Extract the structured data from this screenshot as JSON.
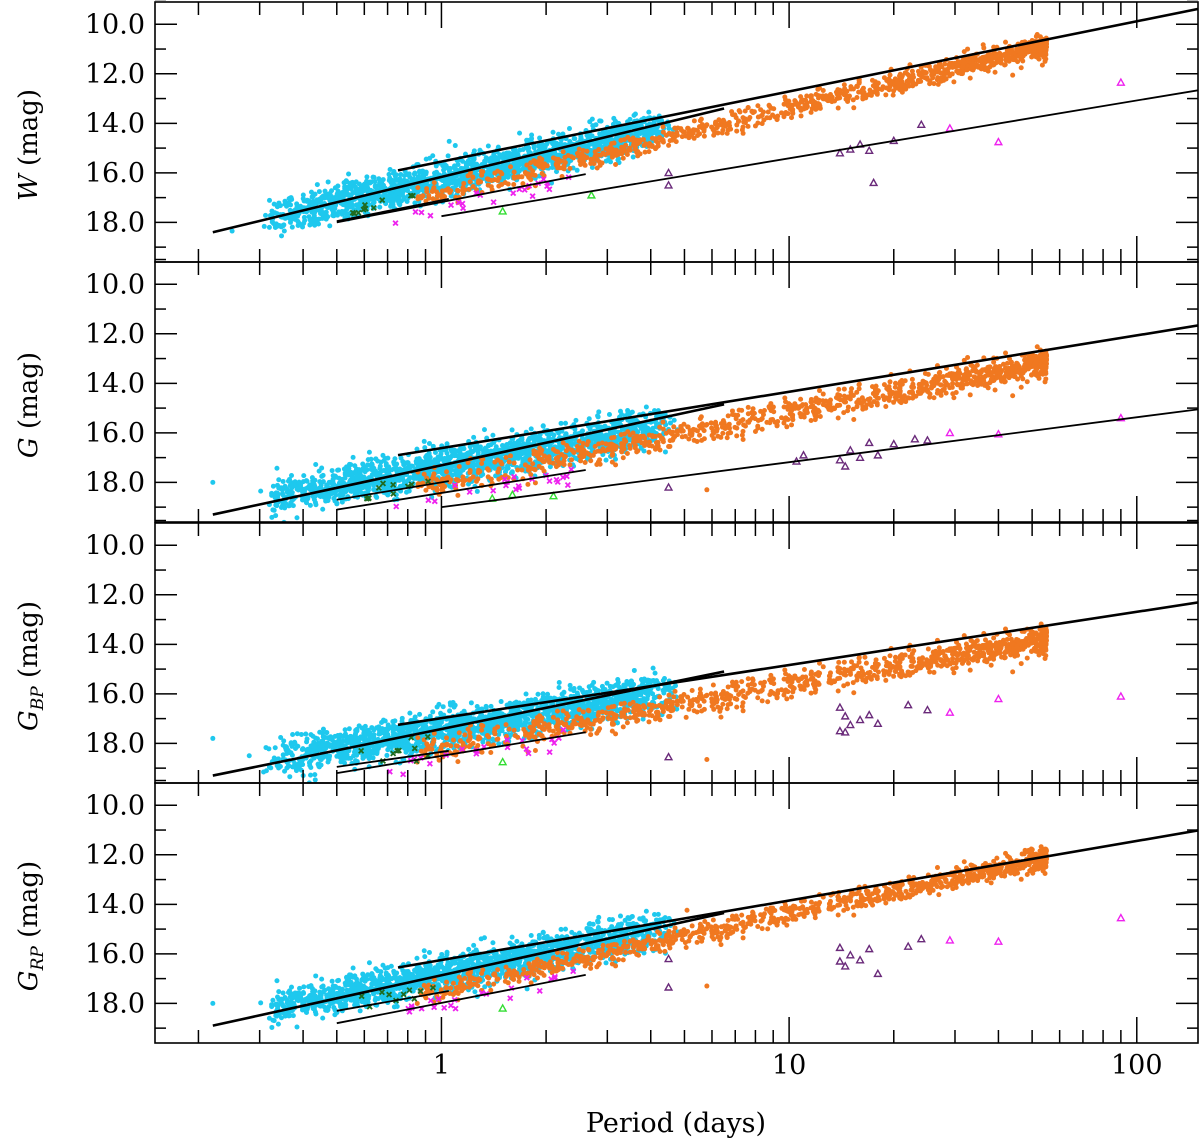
{
  "chart_data": {
    "type": "scatter",
    "xlabel": "Period (days)",
    "xscale": "log",
    "xlim": [
      0.15,
      150
    ],
    "xticks": [
      1,
      10,
      100
    ],
    "xtick_labels": [
      "1",
      "10",
      "100"
    ],
    "ylim": [
      19.6,
      9.1
    ],
    "y_inverted": true,
    "yticks": [
      10.0,
      12.0,
      14.0,
      16.0,
      18.0
    ],
    "ytick_labels": [
      "10.0",
      "12.0",
      "14.0",
      "16.0",
      "18.0"
    ],
    "colors": {
      "cyan": "#1ec8ee",
      "orange": "#f07820",
      "magenta": "#ee22ee",
      "purple": "#6a2a7a",
      "green": "#33dd33",
      "darkgreen": "#1f6b1f"
    },
    "panels": [
      {
        "ylabel_main": "W",
        "ylabel_sub": "",
        "ylabel_unit": "(mag)",
        "fits": [
          {
            "x": [
              0.22,
              6.5
            ],
            "y": [
              18.4,
              13.4
            ],
            "width": 2.6
          },
          {
            "x": [
              0.75,
              160
            ],
            "y": [
              15.9,
              9.3
            ],
            "width": 2.6
          },
          {
            "x": [
              0.5,
              1.05
            ],
            "y": [
              17.95,
              17.05
            ],
            "width": 1.8
          },
          {
            "x": [
              0.5,
              2.6
            ],
            "y": [
              18.0,
              16.05
            ],
            "width": 1.8
          },
          {
            "x": [
              1.0,
              160
            ],
            "y": [
              17.75,
              12.6
            ],
            "width": 1.8
          }
        ],
        "groups": [
          {
            "name": "cyan",
            "color": "#1ec8ee",
            "marker": "dot",
            "n": 1700,
            "xrange": [
              0.3,
              4.8
            ],
            "center": [
              0.22,
              18.35
            ],
            "slope": -3.2,
            "scatter": 0.36
          },
          {
            "name": "orange",
            "color": "#f07820",
            "marker": "dot",
            "n": 1000,
            "xrange": [
              0.85,
              55
            ],
            "center": [
              1.0,
              16.8
            ],
            "slope": -3.4,
            "scatter": 0.22
          },
          {
            "name": "magenta",
            "color": "#ee22ee",
            "marker": "cross",
            "n": 22,
            "xrange": [
              0.7,
              2.4
            ],
            "center": [
              1.0,
              17.35
            ],
            "slope": -2.9,
            "scatter": 0.2
          },
          {
            "name": "darkgreen",
            "color": "#1f6b1f",
            "marker": "cross",
            "n": 10,
            "xrange": [
              0.55,
              0.95
            ],
            "center": [
              0.7,
              17.3
            ],
            "slope": -3.0,
            "scatter": 0.15
          }
        ],
        "points": [
          {
            "p": 0.32,
            "m": 18.2,
            "c": "cyan"
          },
          {
            "p": 0.25,
            "m": 18.35,
            "c": "cyan"
          },
          {
            "p": 1.5,
            "m": 17.55,
            "c": "green",
            "marker": "triangle"
          },
          {
            "p": 2.7,
            "m": 16.9,
            "c": "green",
            "marker": "triangle"
          },
          {
            "p": 4.5,
            "m": 16.0,
            "c": "purple",
            "marker": "triangle"
          },
          {
            "p": 4.5,
            "m": 16.5,
            "c": "purple",
            "marker": "triangle"
          },
          {
            "p": 14,
            "m": 15.2,
            "c": "purple",
            "marker": "triangle"
          },
          {
            "p": 15,
            "m": 15.05,
            "c": "purple",
            "marker": "triangle"
          },
          {
            "p": 16,
            "m": 14.85,
            "c": "purple",
            "marker": "triangle"
          },
          {
            "p": 17,
            "m": 15.1,
            "c": "purple",
            "marker": "triangle"
          },
          {
            "p": 17.5,
            "m": 16.4,
            "c": "purple",
            "marker": "triangle"
          },
          {
            "p": 20,
            "m": 14.7,
            "c": "purple",
            "marker": "triangle"
          },
          {
            "p": 24,
            "m": 14.05,
            "c": "purple",
            "marker": "triangle"
          },
          {
            "p": 29,
            "m": 14.2,
            "c": "magenta",
            "marker": "triangle"
          },
          {
            "p": 40,
            "m": 14.75,
            "c": "magenta",
            "marker": "triangle"
          },
          {
            "p": 90,
            "m": 12.35,
            "c": "magenta",
            "marker": "triangle"
          }
        ]
      },
      {
        "ylabel_main": "G",
        "ylabel_sub": "",
        "ylabel_unit": "(mag)",
        "fits": [
          {
            "x": [
              0.22,
              6.5
            ],
            "y": [
              19.3,
              14.85
            ],
            "width": 2.6
          },
          {
            "x": [
              0.75,
              160
            ],
            "y": [
              16.9,
              11.6
            ],
            "width": 2.6
          },
          {
            "x": [
              0.5,
              1.05
            ],
            "y": [
              18.7,
              17.95
            ],
            "width": 1.8
          },
          {
            "x": [
              0.5,
              2.6
            ],
            "y": [
              19.1,
              17.5
            ],
            "width": 1.8
          },
          {
            "x": [
              1.0,
              160
            ],
            "y": [
              19.0,
              15.0
            ],
            "width": 1.8
          }
        ],
        "groups": [
          {
            "name": "cyan",
            "color": "#1ec8ee",
            "marker": "dot",
            "n": 1700,
            "xrange": [
              0.3,
              4.8
            ],
            "center": [
              0.22,
              19.05
            ],
            "slope": -2.55,
            "scatter": 0.38
          },
          {
            "name": "orange",
            "color": "#f07820",
            "marker": "dot",
            "n": 1000,
            "xrange": [
              0.85,
              55
            ],
            "center": [
              1.0,
              17.95
            ],
            "slope": -2.75,
            "scatter": 0.28
          },
          {
            "name": "magenta",
            "color": "#ee22ee",
            "marker": "cross",
            "n": 22,
            "xrange": [
              0.7,
              2.4
            ],
            "center": [
              1.0,
              18.55
            ],
            "slope": -2.4,
            "scatter": 0.22
          },
          {
            "name": "darkgreen",
            "color": "#1f6b1f",
            "marker": "cross",
            "n": 10,
            "xrange": [
              0.55,
              0.95
            ],
            "center": [
              0.7,
              18.35
            ],
            "slope": -2.4,
            "scatter": 0.18
          }
        ],
        "points": [
          {
            "p": 0.22,
            "m": 18.0,
            "c": "cyan"
          },
          {
            "p": 0.32,
            "m": 18.9,
            "c": "cyan"
          },
          {
            "p": 0.38,
            "m": 18.6,
            "c": "cyan"
          },
          {
            "p": 5.8,
            "m": 18.3,
            "c": "orange"
          },
          {
            "p": 1.4,
            "m": 18.65,
            "c": "green",
            "marker": "triangle"
          },
          {
            "p": 1.6,
            "m": 18.5,
            "c": "green",
            "marker": "triangle"
          },
          {
            "p": 2.1,
            "m": 18.55,
            "c": "green",
            "marker": "triangle"
          },
          {
            "p": 4.5,
            "m": 18.2,
            "c": "purple",
            "marker": "triangle"
          },
          {
            "p": 10.5,
            "m": 17.15,
            "c": "purple",
            "marker": "triangle"
          },
          {
            "p": 11,
            "m": 16.9,
            "c": "purple",
            "marker": "triangle"
          },
          {
            "p": 14,
            "m": 17.1,
            "c": "purple",
            "marker": "triangle"
          },
          {
            "p": 14.5,
            "m": 17.35,
            "c": "purple",
            "marker": "triangle"
          },
          {
            "p": 15,
            "m": 16.7,
            "c": "purple",
            "marker": "triangle"
          },
          {
            "p": 16,
            "m": 17.0,
            "c": "purple",
            "marker": "triangle"
          },
          {
            "p": 17,
            "m": 16.4,
            "c": "purple",
            "marker": "triangle"
          },
          {
            "p": 18,
            "m": 16.9,
            "c": "purple",
            "marker": "triangle"
          },
          {
            "p": 20,
            "m": 16.45,
            "c": "purple",
            "marker": "triangle"
          },
          {
            "p": 23,
            "m": 16.25,
            "c": "purple",
            "marker": "triangle"
          },
          {
            "p": 25,
            "m": 16.3,
            "c": "purple",
            "marker": "triangle"
          },
          {
            "p": 29,
            "m": 16.0,
            "c": "magenta",
            "marker": "triangle"
          },
          {
            "p": 40,
            "m": 16.05,
            "c": "magenta",
            "marker": "triangle"
          },
          {
            "p": 90,
            "m": 15.4,
            "c": "magenta",
            "marker": "triangle"
          }
        ]
      },
      {
        "ylabel_main": "G",
        "ylabel_sub": "BP",
        "ylabel_unit": "(mag)",
        "fits": [
          {
            "x": [
              0.22,
              6.5
            ],
            "y": [
              19.3,
              15.1
            ],
            "width": 2.6
          },
          {
            "x": [
              0.75,
              160
            ],
            "y": [
              17.25,
              12.25
            ],
            "width": 2.6
          },
          {
            "x": [
              0.5,
              1.05
            ],
            "y": [
              18.95,
              18.3
            ],
            "width": 1.8
          },
          {
            "x": [
              0.5,
              2.6
            ],
            "y": [
              19.2,
              17.55
            ],
            "width": 1.8
          }
        ],
        "groups": [
          {
            "name": "cyan",
            "color": "#1ec8ee",
            "marker": "dot",
            "n": 1700,
            "xrange": [
              0.3,
              4.8
            ],
            "center": [
              0.22,
              19.05
            ],
            "slope": -2.4,
            "scatter": 0.38
          },
          {
            "name": "orange",
            "color": "#f07820",
            "marker": "dot",
            "n": 1000,
            "xrange": [
              0.85,
              55
            ],
            "center": [
              1.0,
              18.15
            ],
            "slope": -2.5,
            "scatter": 0.28
          },
          {
            "name": "magenta",
            "color": "#ee22ee",
            "marker": "cross",
            "n": 22,
            "xrange": [
              0.7,
              2.4
            ],
            "center": [
              1.0,
              18.7
            ],
            "slope": -2.3,
            "scatter": 0.22
          },
          {
            "name": "darkgreen",
            "color": "#1f6b1f",
            "marker": "cross",
            "n": 10,
            "xrange": [
              0.55,
              0.95
            ],
            "center": [
              0.7,
              18.45
            ],
            "slope": -2.2,
            "scatter": 0.18
          }
        ],
        "points": [
          {
            "p": 0.22,
            "m": 17.8,
            "c": "cyan"
          },
          {
            "p": 0.28,
            "m": 18.5,
            "c": "cyan"
          },
          {
            "p": 0.32,
            "m": 18.95,
            "c": "cyan"
          },
          {
            "p": 5.8,
            "m": 18.65,
            "c": "orange"
          },
          {
            "p": 1.5,
            "m": 18.75,
            "c": "green",
            "marker": "triangle"
          },
          {
            "p": 4.5,
            "m": 18.55,
            "c": "purple",
            "marker": "triangle"
          },
          {
            "p": 14,
            "m": 17.5,
            "c": "purple",
            "marker": "triangle"
          },
          {
            "p": 14.5,
            "m": 17.55,
            "c": "purple",
            "marker": "triangle"
          },
          {
            "p": 14,
            "m": 16.55,
            "c": "purple",
            "marker": "triangle"
          },
          {
            "p": 14.5,
            "m": 16.9,
            "c": "purple",
            "marker": "triangle"
          },
          {
            "p": 15,
            "m": 17.25,
            "c": "purple",
            "marker": "triangle"
          },
          {
            "p": 16,
            "m": 17.05,
            "c": "purple",
            "marker": "triangle"
          },
          {
            "p": 17,
            "m": 16.85,
            "c": "purple",
            "marker": "triangle"
          },
          {
            "p": 18,
            "m": 17.2,
            "c": "purple",
            "marker": "triangle"
          },
          {
            "p": 22,
            "m": 16.45,
            "c": "purple",
            "marker": "triangle"
          },
          {
            "p": 25,
            "m": 16.65,
            "c": "purple",
            "marker": "triangle"
          },
          {
            "p": 29,
            "m": 16.75,
            "c": "magenta",
            "marker": "triangle"
          },
          {
            "p": 40,
            "m": 16.2,
            "c": "magenta",
            "marker": "triangle"
          },
          {
            "p": 90,
            "m": 16.1,
            "c": "magenta",
            "marker": "triangle"
          }
        ]
      },
      {
        "ylabel_main": "G",
        "ylabel_sub": "RP",
        "ylabel_unit": "(mag)",
        "fits": [
          {
            "x": [
              0.22,
              6.5
            ],
            "y": [
              18.9,
              14.35
            ],
            "width": 2.6
          },
          {
            "x": [
              0.75,
              160
            ],
            "y": [
              16.55,
              10.95
            ],
            "width": 2.6
          },
          {
            "x": [
              0.5,
              1.05
            ],
            "y": [
              18.3,
              17.5
            ],
            "width": 1.8
          },
          {
            "x": [
              0.5,
              2.6
            ],
            "y": [
              18.8,
              16.85
            ],
            "width": 1.8
          }
        ],
        "groups": [
          {
            "name": "cyan",
            "color": "#1ec8ee",
            "marker": "dot",
            "n": 1700,
            "xrange": [
              0.3,
              4.8
            ],
            "center": [
              0.22,
              18.7
            ],
            "slope": -2.85,
            "scatter": 0.36
          },
          {
            "name": "orange",
            "color": "#f07820",
            "marker": "dot",
            "n": 1000,
            "xrange": [
              0.85,
              55
            ],
            "center": [
              1.0,
              17.45
            ],
            "slope": -3.05,
            "scatter": 0.22
          },
          {
            "name": "magenta",
            "color": "#ee22ee",
            "marker": "cross",
            "n": 22,
            "xrange": [
              0.7,
              2.4
            ],
            "center": [
              1.0,
              17.95
            ],
            "slope": -2.7,
            "scatter": 0.2
          },
          {
            "name": "darkgreen",
            "color": "#1f6b1f",
            "marker": "cross",
            "n": 10,
            "xrange": [
              0.55,
              0.95
            ],
            "center": [
              0.7,
              17.8
            ],
            "slope": -2.8,
            "scatter": 0.15
          }
        ],
        "points": [
          {
            "p": 0.22,
            "m": 18.0,
            "c": "cyan"
          },
          {
            "p": 0.32,
            "m": 18.6,
            "c": "cyan"
          },
          {
            "p": 5.8,
            "m": 17.3,
            "c": "orange"
          },
          {
            "p": 1.5,
            "m": 18.2,
            "c": "green",
            "marker": "triangle"
          },
          {
            "p": 4.5,
            "m": 16.2,
            "c": "purple",
            "marker": "triangle"
          },
          {
            "p": 4.5,
            "m": 17.35,
            "c": "purple",
            "marker": "triangle"
          },
          {
            "p": 14,
            "m": 16.3,
            "c": "purple",
            "marker": "triangle"
          },
          {
            "p": 14.5,
            "m": 16.5,
            "c": "purple",
            "marker": "triangle"
          },
          {
            "p": 14,
            "m": 15.75,
            "c": "purple",
            "marker": "triangle"
          },
          {
            "p": 15,
            "m": 16.05,
            "c": "purple",
            "marker": "triangle"
          },
          {
            "p": 16,
            "m": 16.25,
            "c": "purple",
            "marker": "triangle"
          },
          {
            "p": 17,
            "m": 15.8,
            "c": "purple",
            "marker": "triangle"
          },
          {
            "p": 18,
            "m": 16.8,
            "c": "purple",
            "marker": "triangle"
          },
          {
            "p": 22,
            "m": 15.7,
            "c": "purple",
            "marker": "triangle"
          },
          {
            "p": 24,
            "m": 15.4,
            "c": "purple",
            "marker": "triangle"
          },
          {
            "p": 29,
            "m": 15.45,
            "c": "magenta",
            "marker": "triangle"
          },
          {
            "p": 40,
            "m": 15.5,
            "c": "magenta",
            "marker": "triangle"
          },
          {
            "p": 90,
            "m": 14.55,
            "c": "magenta",
            "marker": "triangle"
          }
        ]
      }
    ]
  }
}
